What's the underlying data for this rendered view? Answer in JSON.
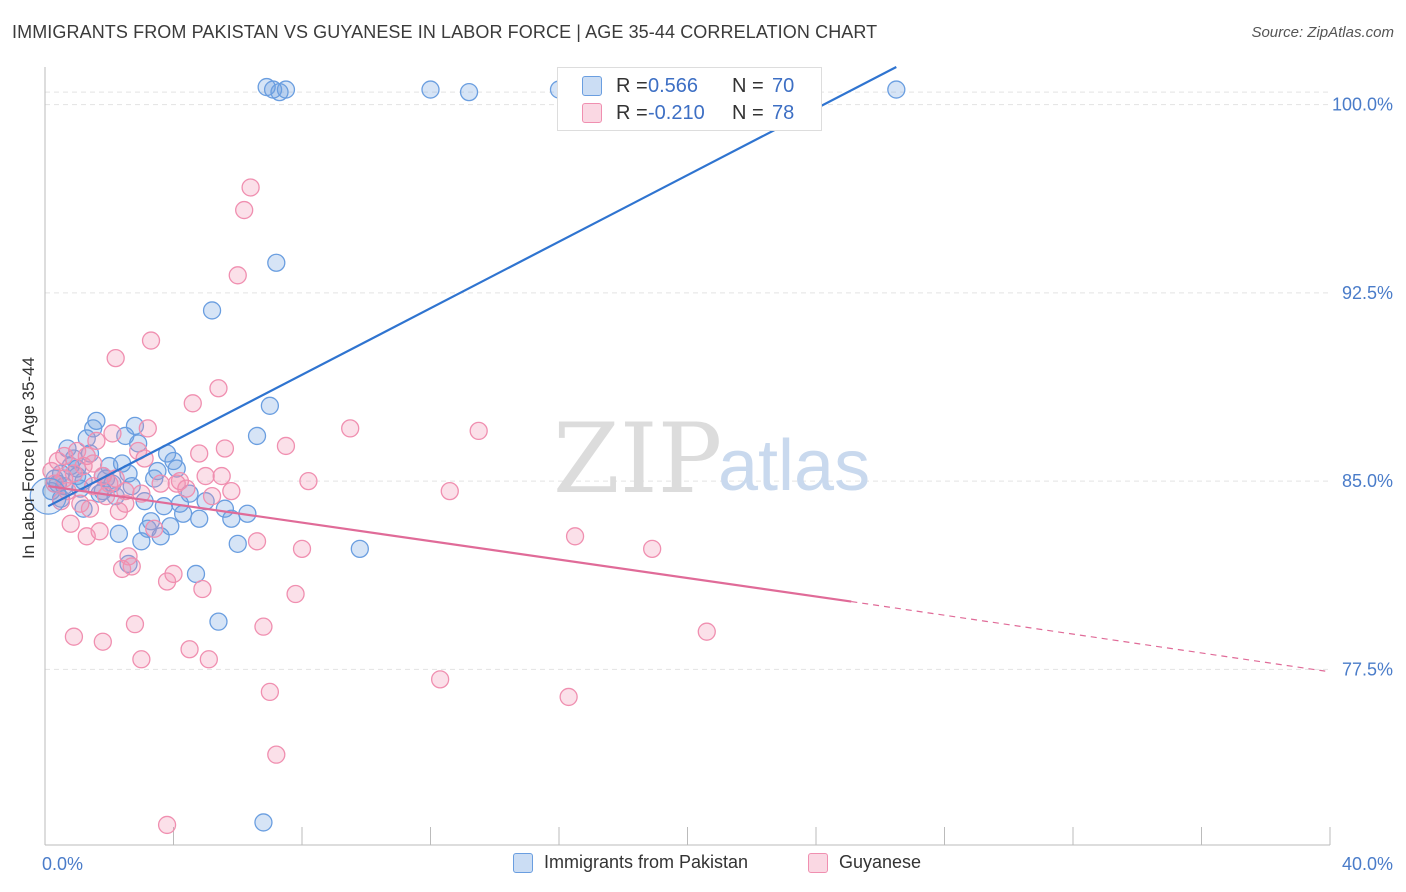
{
  "title": "IMMIGRANTS FROM PAKISTAN VS GUYANESE IN LABOR FORCE | AGE 35-44 CORRELATION CHART",
  "source": "Source: ZipAtlas.com",
  "watermark": {
    "zip": "ZIP",
    "atlas": "atlas"
  },
  "legend": {
    "rows": [
      {
        "r_label": "R =",
        "r_value": "0.566",
        "n_label": "N =",
        "n_value": "70",
        "color": "#6a9ee0"
      },
      {
        "r_label": "R =",
        "r_value": "-0.210",
        "n_label": "N =",
        "n_value": "78",
        "color": "#f08fb0"
      }
    ]
  },
  "chart_data": {
    "type": "scatter",
    "title": "IMMIGRANTS FROM PAKISTAN VS GUYANESE IN LABOR FORCE | AGE 35-44 CORRELATION CHART",
    "xlabel": "",
    "ylabel": "In Labor Force | Age 35-44",
    "xlim": [
      0,
      40
    ],
    "ylim": [
      70.5,
      101.5
    ],
    "x_tick_labels": [
      "0.0%",
      "40.0%"
    ],
    "y_ticks": [
      77.5,
      85.0,
      92.5,
      100.0
    ],
    "y_tick_labels": [
      "77.5%",
      "85.0%",
      "92.5%",
      "100.0%"
    ],
    "grid": true,
    "legend_position": "top-center",
    "series": [
      {
        "name": "Immigrants from Pakistan",
        "color": "#6a9ee0",
        "fill": "rgba(106,158,224,0.28)",
        "r": 0.566,
        "n": 70,
        "trend": {
          "x1": 0.1,
          "y1": 84.0,
          "x2": 26.5,
          "y2": 101.5,
          "dashed_to": null
        },
        "points": [
          [
            0.2,
            84.6
          ],
          [
            0.3,
            85.1
          ],
          [
            0.4,
            84.9
          ],
          [
            0.5,
            85.3
          ],
          [
            0.6,
            84.8
          ],
          [
            0.7,
            86.3
          ],
          [
            0.8,
            85.6
          ],
          [
            0.9,
            85.9
          ],
          [
            1.0,
            85.2
          ],
          [
            1.1,
            84.7
          ],
          [
            1.2,
            85.0
          ],
          [
            1.3,
            86.7
          ],
          [
            1.4,
            86.1
          ],
          [
            1.5,
            87.1
          ],
          [
            1.6,
            87.4
          ],
          [
            1.7,
            84.5
          ],
          [
            1.8,
            85.2
          ],
          [
            1.9,
            85.1
          ],
          [
            2.0,
            85.6
          ],
          [
            2.1,
            84.9
          ],
          [
            2.2,
            84.4
          ],
          [
            2.3,
            82.9
          ],
          [
            2.4,
            85.7
          ],
          [
            2.5,
            86.8
          ],
          [
            2.6,
            85.3
          ],
          [
            2.7,
            84.8
          ],
          [
            2.8,
            87.2
          ],
          [
            2.9,
            86.5
          ],
          [
            3.0,
            82.6
          ],
          [
            3.1,
            84.2
          ],
          [
            3.2,
            83.1
          ],
          [
            3.3,
            83.4
          ],
          [
            3.4,
            85.1
          ],
          [
            3.5,
            85.4
          ],
          [
            3.6,
            82.8
          ],
          [
            3.7,
            84.0
          ],
          [
            3.8,
            86.1
          ],
          [
            3.9,
            83.2
          ],
          [
            4.0,
            85.8
          ],
          [
            4.1,
            85.5
          ],
          [
            4.2,
            84.1
          ],
          [
            4.3,
            83.7
          ],
          [
            4.5,
            84.5
          ],
          [
            4.8,
            83.5
          ],
          [
            5.0,
            84.2
          ],
          [
            5.2,
            91.8
          ],
          [
            5.4,
            79.4
          ],
          [
            5.6,
            83.9
          ],
          [
            5.8,
            83.5
          ],
          [
            6.0,
            82.5
          ],
          [
            6.3,
            83.7
          ],
          [
            6.6,
            86.8
          ],
          [
            6.8,
            71.4
          ],
          [
            7.0,
            88.0
          ],
          [
            7.2,
            93.7
          ],
          [
            6.9,
            100.7
          ],
          [
            7.1,
            100.6
          ],
          [
            7.3,
            100.5
          ],
          [
            7.5,
            100.6
          ],
          [
            12.0,
            100.6
          ],
          [
            13.2,
            100.5
          ],
          [
            16.0,
            100.6
          ],
          [
            9.8,
            82.3
          ],
          [
            4.7,
            81.3
          ],
          [
            2.6,
            81.7
          ],
          [
            0.5,
            84.3
          ],
          [
            1.0,
            85.5
          ],
          [
            1.8,
            84.6
          ],
          [
            26.5,
            100.6
          ],
          [
            1.2,
            83.9
          ]
        ]
      },
      {
        "name": "Guyanese",
        "color": "#f08fb0",
        "fill": "rgba(240,143,176,0.28)",
        "r": -0.21,
        "n": 78,
        "trend": {
          "x1": 0.1,
          "y1": 84.8,
          "x2": 25.1,
          "y2": 80.2,
          "dashed_to": {
            "x": 40,
            "y": 77.4
          }
        },
        "points": [
          [
            0.2,
            85.4
          ],
          [
            0.3,
            84.9
          ],
          [
            0.4,
            85.8
          ],
          [
            0.5,
            84.2
          ],
          [
            0.6,
            86.0
          ],
          [
            0.7,
            84.6
          ],
          [
            0.8,
            83.3
          ],
          [
            0.9,
            85.3
          ],
          [
            1.0,
            86.2
          ],
          [
            1.1,
            84.1
          ],
          [
            1.2,
            85.6
          ],
          [
            1.3,
            86.0
          ],
          [
            1.4,
            83.9
          ],
          [
            1.5,
            84.8
          ],
          [
            1.6,
            86.6
          ],
          [
            1.7,
            83.0
          ],
          [
            1.8,
            85.2
          ],
          [
            1.9,
            84.4
          ],
          [
            2.0,
            84.9
          ],
          [
            2.1,
            86.9
          ],
          [
            2.2,
            85.1
          ],
          [
            2.3,
            83.8
          ],
          [
            2.4,
            81.5
          ],
          [
            2.5,
            84.6
          ],
          [
            2.6,
            82.0
          ],
          [
            2.7,
            81.6
          ],
          [
            2.8,
            79.3
          ],
          [
            2.9,
            86.2
          ],
          [
            3.0,
            84.5
          ],
          [
            3.1,
            85.9
          ],
          [
            3.2,
            87.1
          ],
          [
            3.3,
            90.6
          ],
          [
            3.4,
            83.1
          ],
          [
            3.6,
            84.9
          ],
          [
            3.8,
            81.0
          ],
          [
            4.0,
            81.3
          ],
          [
            4.2,
            85.0
          ],
          [
            4.4,
            84.7
          ],
          [
            4.5,
            78.3
          ],
          [
            4.6,
            88.1
          ],
          [
            4.8,
            86.1
          ],
          [
            5.0,
            85.2
          ],
          [
            5.2,
            84.4
          ],
          [
            5.4,
            88.7
          ],
          [
            5.6,
            86.3
          ],
          [
            5.8,
            84.6
          ],
          [
            6.0,
            93.2
          ],
          [
            6.2,
            95.8
          ],
          [
            6.4,
            96.7
          ],
          [
            6.6,
            82.6
          ],
          [
            6.8,
            79.2
          ],
          [
            7.0,
            76.6
          ],
          [
            7.2,
            74.1
          ],
          [
            7.5,
            86.4
          ],
          [
            7.8,
            80.5
          ],
          [
            8.0,
            82.3
          ],
          [
            8.2,
            85.0
          ],
          [
            9.5,
            87.1
          ],
          [
            12.3,
            77.1
          ],
          [
            12.6,
            84.6
          ],
          [
            13.5,
            87.0
          ],
          [
            16.3,
            76.4
          ],
          [
            16.5,
            82.8
          ],
          [
            18.9,
            82.3
          ],
          [
            20.6,
            79.0
          ],
          [
            2.2,
            89.9
          ],
          [
            3.8,
            71.3
          ],
          [
            4.9,
            80.7
          ],
          [
            5.1,
            77.9
          ],
          [
            3.0,
            77.9
          ],
          [
            1.8,
            78.6
          ],
          [
            0.9,
            78.8
          ],
          [
            1.3,
            82.8
          ],
          [
            2.5,
            84.1
          ],
          [
            0.6,
            85.1
          ],
          [
            1.5,
            85.7
          ],
          [
            4.1,
            84.9
          ],
          [
            5.5,
            85.2
          ]
        ]
      }
    ]
  }
}
